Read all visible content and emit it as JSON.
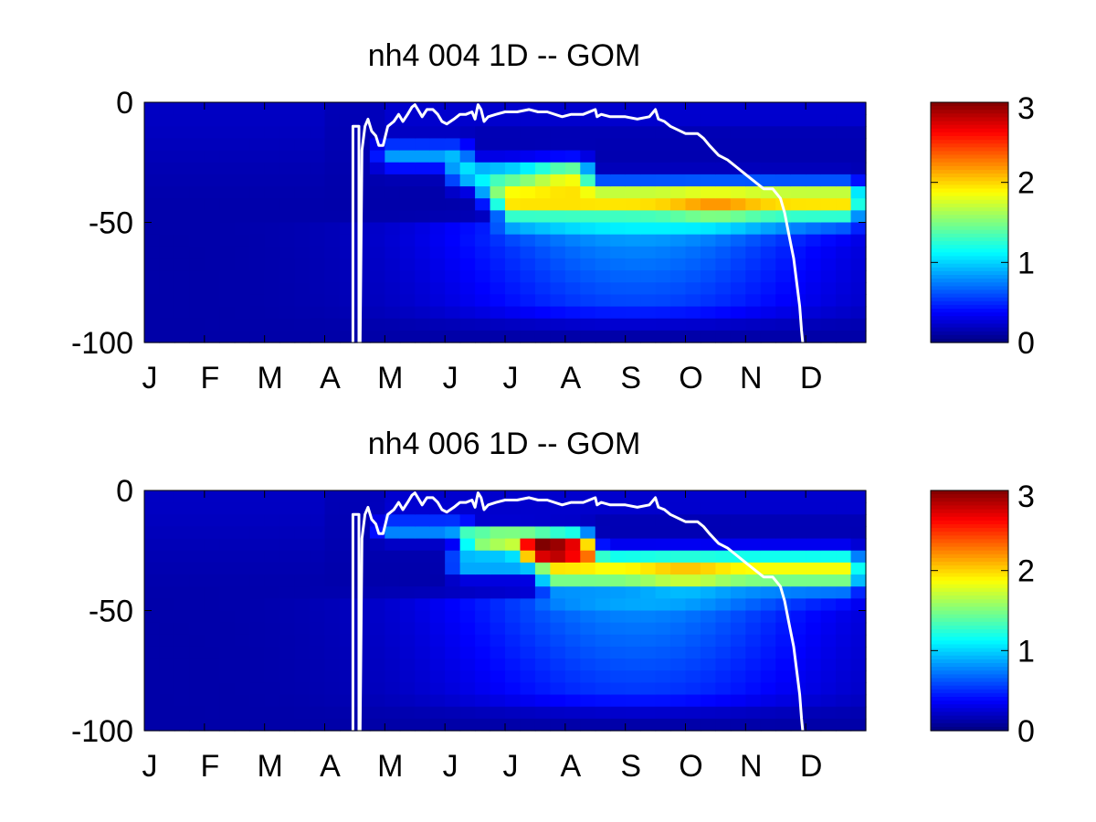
{
  "figure": {
    "colormap": "jet",
    "background": "#ffffff",
    "line_color": "#ffffff"
  },
  "chart_data": [
    {
      "type": "heatmap",
      "title": "nh4  004 1D   -- GOM",
      "x_months": [
        "J",
        "F",
        "M",
        "A",
        "M",
        "J",
        "J",
        "A",
        "S",
        "O",
        "N",
        "D"
      ],
      "xlim": [
        0,
        12
      ],
      "ylim": [
        -100,
        0
      ],
      "y_ticks": [
        "0",
        "-50",
        "-100"
      ],
      "y_tick_values": [
        0,
        -50,
        -100
      ],
      "colorbar": {
        "clim": [
          0,
          3
        ],
        "ticks": [
          "3",
          "2",
          "1",
          "0"
        ],
        "tick_values": [
          3,
          2,
          1,
          0
        ]
      },
      "grid": false,
      "z_features": {
        "base": 0.12,
        "surface_band": {
          "start": 3.85,
          "end": 12,
          "depth": -5,
          "width": 3,
          "amp": 0.1
        },
        "nutricline_bands": [
          {
            "start": 3.8,
            "end": 5.5,
            "depth": -22,
            "width": 4,
            "amp": 0.7
          },
          {
            "start": 5.0,
            "end": 7.5,
            "depth": -30,
            "width": 4,
            "amp": 0.9,
            "peak_month": 7.1,
            "peak_amp": 0.6
          },
          {
            "start": 5.5,
            "end": 12,
            "depth": -38,
            "width": 4,
            "amp": 1.0
          },
          {
            "start": 5.8,
            "end": 12,
            "depth": -44,
            "width": 5,
            "amp": 1.35,
            "peak_month": 9.5,
            "peak_amp": 0.25
          }
        ],
        "deep_plume": {
          "center_month": 8.2,
          "spread": 2.2,
          "top": -48,
          "bottom": -98,
          "amp": 0.75
        }
      },
      "mixed_layer": [
        [
          3.47,
          -100
        ],
        [
          3.47,
          -10
        ],
        [
          3.57,
          -10
        ],
        [
          3.57,
          -100
        ],
        [
          3.59,
          -100
        ],
        [
          3.62,
          -20
        ],
        [
          3.67,
          -10
        ],
        [
          3.72,
          -7
        ],
        [
          3.78,
          -12
        ],
        [
          3.85,
          -14
        ],
        [
          3.9,
          -18
        ],
        [
          3.97,
          -18
        ],
        [
          4.05,
          -10
        ],
        [
          4.15,
          -8
        ],
        [
          4.23,
          -5
        ],
        [
          4.3,
          -8
        ],
        [
          4.38,
          -5
        ],
        [
          4.45,
          -2
        ],
        [
          4.5,
          -1
        ],
        [
          4.55,
          -3
        ],
        [
          4.62,
          -6
        ],
        [
          4.7,
          -3
        ],
        [
          4.8,
          -3
        ],
        [
          4.88,
          -5
        ],
        [
          4.95,
          -8
        ],
        [
          5.03,
          -9
        ],
        [
          5.15,
          -7
        ],
        [
          5.25,
          -5
        ],
        [
          5.35,
          -5
        ],
        [
          5.45,
          -4
        ],
        [
          5.5,
          -7
        ],
        [
          5.55,
          -1
        ],
        [
          5.6,
          -3
        ],
        [
          5.65,
          -8
        ],
        [
          5.72,
          -6
        ],
        [
          5.85,
          -5
        ],
        [
          6.0,
          -4
        ],
        [
          6.2,
          -4
        ],
        [
          6.4,
          -3
        ],
        [
          6.55,
          -4
        ],
        [
          6.7,
          -4
        ],
        [
          6.95,
          -6
        ],
        [
          7.1,
          -5
        ],
        [
          7.3,
          -5
        ],
        [
          7.5,
          -3
        ],
        [
          7.53,
          -6
        ],
        [
          7.6,
          -5
        ],
        [
          7.75,
          -6
        ],
        [
          8.0,
          -6
        ],
        [
          8.2,
          -7
        ],
        [
          8.4,
          -6
        ],
        [
          8.5,
          -3
        ],
        [
          8.55,
          -7
        ],
        [
          8.65,
          -8
        ],
        [
          8.75,
          -10
        ],
        [
          9.0,
          -13
        ],
        [
          9.2,
          -13
        ],
        [
          9.3,
          -15
        ],
        [
          9.4,
          -18
        ],
        [
          9.55,
          -22
        ],
        [
          9.7,
          -24
        ],
        [
          9.85,
          -27
        ],
        [
          10.0,
          -30
        ],
        [
          10.15,
          -33
        ],
        [
          10.3,
          -36
        ],
        [
          10.45,
          -36
        ],
        [
          10.58,
          -40
        ],
        [
          10.65,
          -46
        ],
        [
          10.72,
          -55
        ],
        [
          10.8,
          -65
        ],
        [
          10.85,
          -75
        ],
        [
          10.9,
          -85
        ],
        [
          10.93,
          -95
        ],
        [
          10.95,
          -100
        ]
      ]
    },
    {
      "type": "heatmap",
      "title": "nh4  006 1D   -- GOM",
      "x_months": [
        "J",
        "F",
        "M",
        "A",
        "M",
        "J",
        "J",
        "A",
        "S",
        "O",
        "N",
        "D"
      ],
      "xlim": [
        0,
        12
      ],
      "ylim": [
        -100,
        0
      ],
      "y_ticks": [
        "0",
        "-50",
        "-100"
      ],
      "y_tick_values": [
        0,
        -50,
        -100
      ],
      "colorbar": {
        "clim": [
          0,
          3
        ],
        "ticks": [
          "3",
          "2",
          "1",
          "0"
        ],
        "tick_values": [
          3,
          2,
          1,
          0
        ]
      },
      "grid": false,
      "z_features": {
        "base": 0.12,
        "surface_band": {
          "start": 3.85,
          "end": 12,
          "depth": -5,
          "width": 3,
          "amp": 0.1
        },
        "nutricline_bands": [
          {
            "start": 3.8,
            "end": 5.5,
            "depth": -16,
            "width": 3,
            "amp": 0.7
          },
          {
            "start": 5.2,
            "end": 7.5,
            "depth": -20,
            "width": 3,
            "amp": 1.3,
            "peak_month": 6.0,
            "peak_amp": 0.6
          },
          {
            "start": 6.2,
            "end": 7.6,
            "depth": -25,
            "width": 3,
            "amp": 1.3,
            "peak_month": 6.7,
            "peak_amp": 1.0
          },
          {
            "start": 5.0,
            "end": 12,
            "depth": -30,
            "width": 4,
            "amp": 0.9
          },
          {
            "start": 6.5,
            "end": 12,
            "depth": -36,
            "width": 5,
            "amp": 1.25,
            "peak_month": 9.0,
            "peak_amp": 0.25
          }
        ],
        "deep_plume": {
          "center_month": 8.2,
          "spread": 2.2,
          "top": -42,
          "bottom": -98,
          "amp": 0.7
        }
      },
      "mixed_layer": [
        [
          3.47,
          -100
        ],
        [
          3.47,
          -10
        ],
        [
          3.57,
          -10
        ],
        [
          3.57,
          -100
        ],
        [
          3.59,
          -100
        ],
        [
          3.62,
          -20
        ],
        [
          3.67,
          -10
        ],
        [
          3.72,
          -7
        ],
        [
          3.78,
          -12
        ],
        [
          3.85,
          -14
        ],
        [
          3.9,
          -18
        ],
        [
          3.97,
          -18
        ],
        [
          4.05,
          -10
        ],
        [
          4.15,
          -8
        ],
        [
          4.23,
          -5
        ],
        [
          4.3,
          -8
        ],
        [
          4.38,
          -5
        ],
        [
          4.45,
          -2
        ],
        [
          4.5,
          -1
        ],
        [
          4.55,
          -3
        ],
        [
          4.62,
          -6
        ],
        [
          4.7,
          -3
        ],
        [
          4.8,
          -3
        ],
        [
          4.88,
          -5
        ],
        [
          4.95,
          -8
        ],
        [
          5.03,
          -9
        ],
        [
          5.15,
          -7
        ],
        [
          5.25,
          -5
        ],
        [
          5.35,
          -5
        ],
        [
          5.45,
          -4
        ],
        [
          5.5,
          -7
        ],
        [
          5.55,
          -1
        ],
        [
          5.6,
          -3
        ],
        [
          5.65,
          -8
        ],
        [
          5.72,
          -6
        ],
        [
          5.85,
          -5
        ],
        [
          6.0,
          -4
        ],
        [
          6.2,
          -4
        ],
        [
          6.4,
          -3
        ],
        [
          6.55,
          -4
        ],
        [
          6.7,
          -4
        ],
        [
          6.95,
          -6
        ],
        [
          7.1,
          -5
        ],
        [
          7.3,
          -5
        ],
        [
          7.5,
          -3
        ],
        [
          7.53,
          -6
        ],
        [
          7.6,
          -5
        ],
        [
          7.75,
          -6
        ],
        [
          8.0,
          -6
        ],
        [
          8.2,
          -7
        ],
        [
          8.4,
          -6
        ],
        [
          8.5,
          -3
        ],
        [
          8.55,
          -7
        ],
        [
          8.65,
          -8
        ],
        [
          8.75,
          -10
        ],
        [
          9.0,
          -13
        ],
        [
          9.2,
          -13
        ],
        [
          9.3,
          -15
        ],
        [
          9.4,
          -18
        ],
        [
          9.55,
          -22
        ],
        [
          9.7,
          -24
        ],
        [
          9.85,
          -27
        ],
        [
          10.0,
          -30
        ],
        [
          10.15,
          -33
        ],
        [
          10.3,
          -36
        ],
        [
          10.45,
          -36
        ],
        [
          10.58,
          -40
        ],
        [
          10.65,
          -46
        ],
        [
          10.72,
          -55
        ],
        [
          10.8,
          -65
        ],
        [
          10.85,
          -75
        ],
        [
          10.9,
          -85
        ],
        [
          10.93,
          -95
        ],
        [
          10.95,
          -100
        ]
      ]
    }
  ]
}
